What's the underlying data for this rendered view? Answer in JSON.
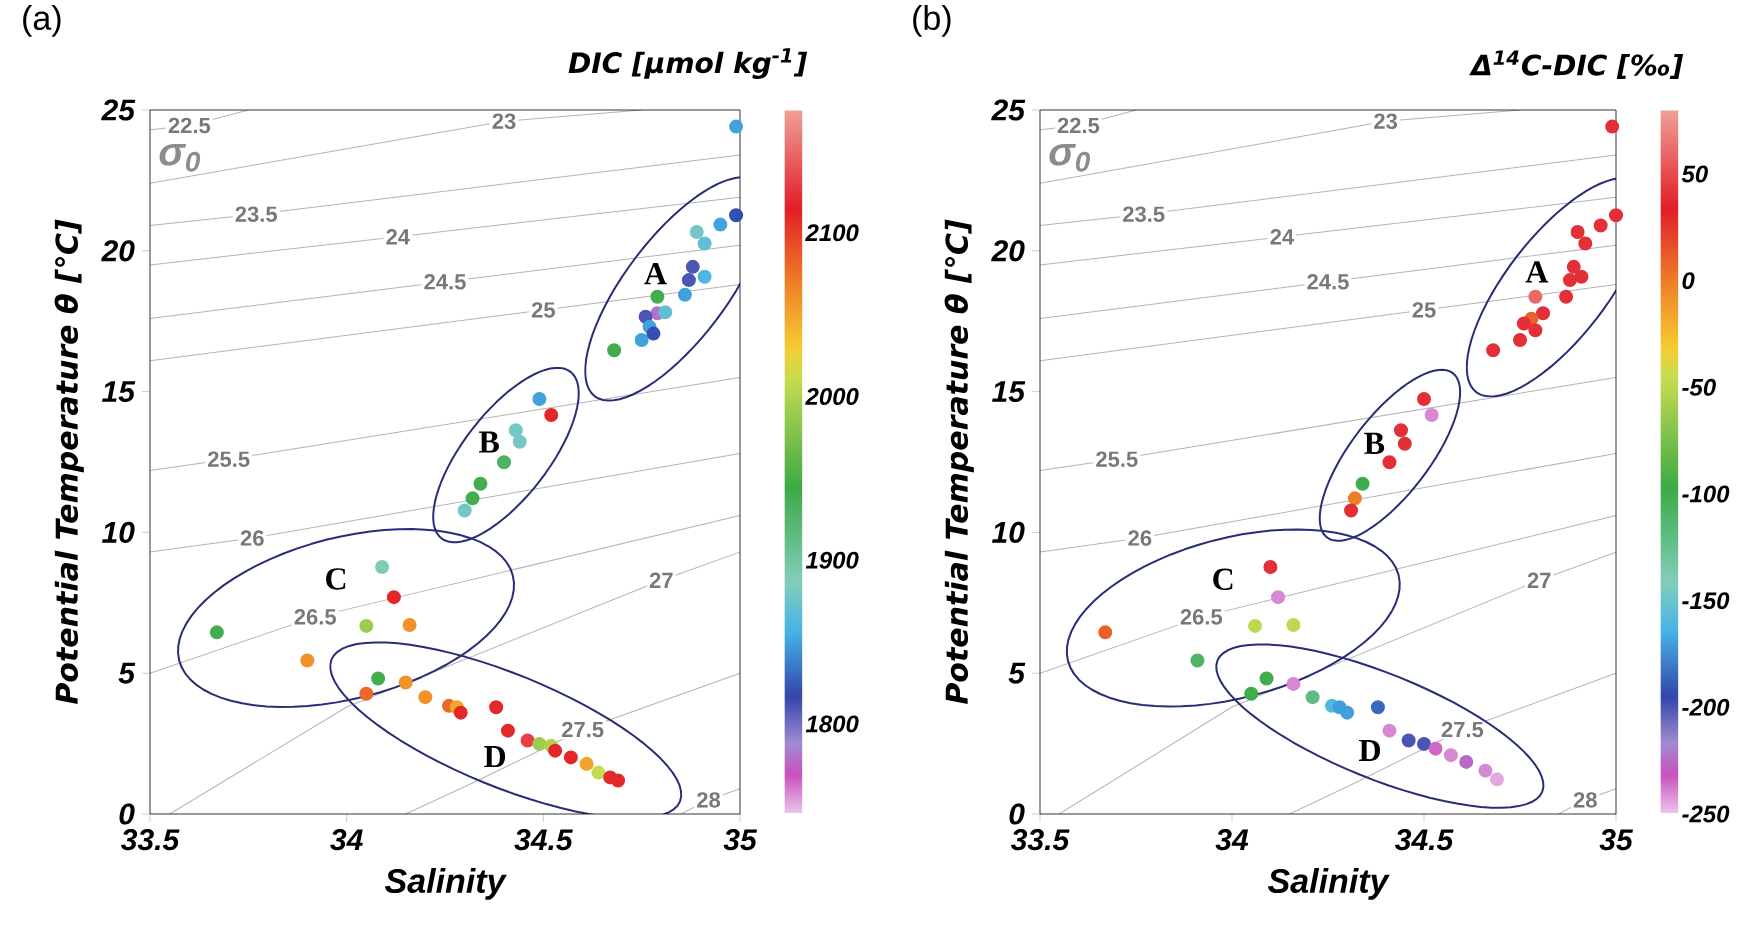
{
  "chart_data": [
    {
      "type": "scatter",
      "title": "(a)",
      "xlabel": "Salinity",
      "ylabel": "Potential Temperature θ [℃]",
      "clabel": "DIC [μmol kg$^{-1}$]",
      "xlim": [
        33.5,
        35
      ],
      "ylim": [
        0,
        25
      ],
      "xticks": [
        33.5,
        34,
        34.5,
        35
      ],
      "yticks": [
        0,
        5,
        10,
        15,
        20,
        25
      ],
      "clim": [
        1745,
        2175
      ],
      "cticks": [
        1800,
        1900,
        2000,
        2100
      ],
      "marker": "circle",
      "annotations": [
        "σ$_{0}$"
      ],
      "series": [
        {
          "type": "line",
          "marker": "none",
          "name": "22.5",
          "color": "#b4b4b4",
          "x": [
            33.5,
            33.6,
            33.75
          ],
          "values": [
            24.3,
            24.45,
            25.0
          ]
        },
        {
          "type": "line",
          "marker": "none",
          "name": "23",
          "color": "#b4b4b4",
          "x": [
            33.5,
            34.4,
            34.75
          ],
          "values": [
            22.4,
            24.6,
            25.0
          ]
        },
        {
          "type": "line",
          "marker": "none",
          "name": "23.5",
          "color": "#b4b4b4",
          "x": [
            33.5,
            33.77,
            35.0
          ],
          "values": [
            20.9,
            21.3,
            23.4
          ]
        },
        {
          "type": "line",
          "marker": "none",
          "name": "24",
          "color": "#b4b4b4",
          "x": [
            33.5,
            34.13,
            35.0
          ],
          "values": [
            19.5,
            20.5,
            21.9
          ]
        },
        {
          "type": "line",
          "marker": "none",
          "name": "24.5",
          "color": "#b4b4b4",
          "x": [
            33.5,
            34.25,
            35.0
          ],
          "values": [
            17.6,
            18.9,
            20.2
          ]
        },
        {
          "type": "line",
          "marker": "none",
          "name": "25",
          "color": "#b4b4b4",
          "x": [
            33.5,
            34.5,
            35.0
          ],
          "values": [
            16.1,
            17.9,
            18.8
          ]
        },
        {
          "type": "line",
          "marker": "none",
          "name": "25.5",
          "color": "#b4b4b4",
          "x": [
            33.5,
            33.7,
            35.0
          ],
          "values": [
            12.2,
            12.6,
            15.5
          ]
        },
        {
          "type": "line",
          "marker": "none",
          "name": "26",
          "color": "#b4b4b4",
          "x": [
            33.5,
            33.76,
            35.0
          ],
          "values": [
            9.3,
            9.8,
            12.8
          ]
        },
        {
          "type": "line",
          "marker": "none",
          "name": "26.5",
          "color": "#b4b4b4",
          "x": [
            33.5,
            33.92,
            35.0
          ],
          "values": [
            5.0,
            7.0,
            10.6
          ]
        },
        {
          "type": "line",
          "marker": "none",
          "name": "27",
          "color": "#b4b4b4",
          "x": [
            33.55,
            34.0,
            34.8,
            35.0
          ],
          "values": [
            0,
            3.8,
            8.3,
            9.3
          ]
        },
        {
          "type": "line",
          "marker": "none",
          "name": "27.5",
          "color": "#b4b4b4",
          "x": [
            34.15,
            34.32,
            34.6,
            35.0
          ],
          "values": [
            0,
            1.1,
            3.0,
            5.0
          ]
        },
        {
          "type": "line",
          "marker": "none",
          "name": "28",
          "color": "#b4b4b4",
          "x": [
            34.85,
            34.92,
            35.0
          ],
          "values": [
            0,
            0.5,
            0.9
          ]
        },
        {
          "x": [
            34.99
          ],
          "values": [
            24.41
          ],
          "cvalues": [
            1850
          ],
          "colors": [
            "#43a1dc"
          ]
        },
        {
          "name": "A",
          "x": [
            34.99,
            34.95,
            34.89,
            34.91,
            34.88,
            34.87,
            34.91,
            34.79,
            34.86,
            34.79,
            34.76,
            34.81,
            34.77,
            34.75,
            34.78,
            34.68
          ],
          "values": [
            21.26,
            20.93,
            20.67,
            20.26,
            19.43,
            18.96,
            19.08,
            18.37,
            18.44,
            17.78,
            17.66,
            17.82,
            17.3,
            16.83,
            17.06,
            16.47
          ],
          "cvalues": [
            1820,
            1850,
            1880,
            1870,
            1810,
            1810,
            1860,
            1940,
            1850,
            1780,
            1810,
            1870,
            1850,
            1850,
            1820,
            1940
          ],
          "colors": [
            "#344faf",
            "#43a1dc",
            "#74c7c3",
            "#60bfd2",
            "#4c57b3",
            "#4c57b3",
            "#4cb7e1",
            "#41ad4e",
            "#43a1dc",
            "#b173ca",
            "#4c57b3",
            "#60bfd2",
            "#43a1dc",
            "#43a1dc",
            "#344faf",
            "#41ad4e"
          ]
        },
        {
          "name": "B",
          "x": [
            34.49,
            34.52,
            34.43,
            34.44,
            34.4,
            34.34,
            34.32,
            34.3
          ],
          "values": [
            14.74,
            14.17,
            13.63,
            13.22,
            12.49,
            11.73,
            11.21,
            10.78
          ],
          "cvalues": [
            1850,
            2110,
            1880,
            1880,
            1930,
            1940,
            1940,
            1880
          ],
          "colors": [
            "#43a1dc",
            "#e22828",
            "#74c7c3",
            "#74c7c3",
            "#4db362",
            "#41ad4e",
            "#41ad4e",
            "#74c7c3"
          ]
        },
        {
          "name": "C",
          "x": [
            34.09,
            34.12,
            34.05,
            34.16,
            33.67,
            33.9
          ],
          "values": [
            8.77,
            7.7,
            6.68,
            6.71,
            6.45,
            5.45
          ],
          "cvalues": [
            1890,
            2110,
            1990,
            2060,
            1940,
            2060
          ],
          "colors": [
            "#7ecbb3",
            "#e22828",
            "#9bcc4d",
            "#f09229",
            "#41ad4e",
            "#f09229"
          ]
        },
        {
          "name": "D",
          "x": [
            34.08,
            34.05,
            34.15,
            34.2,
            34.26,
            34.28,
            34.29,
            34.38,
            34.41,
            34.46,
            34.49,
            34.52,
            34.53,
            34.57,
            34.61,
            34.64,
            34.67,
            34.69
          ],
          "values": [
            4.81,
            4.27,
            4.67,
            4.15,
            3.84,
            3.79,
            3.6,
            3.79,
            2.96,
            2.61,
            2.49,
            2.42,
            2.25,
            2.01,
            1.78,
            1.47,
            1.3,
            1.19
          ],
          "cvalues": [
            1940,
            2080,
            2060,
            2060,
            2080,
            2050,
            2110,
            2110,
            2110,
            2130,
            1990,
            2000,
            2110,
            2110,
            2050,
            2010,
            2120,
            2110
          ],
          "colors": [
            "#41ad4e",
            "#eb6828",
            "#f09229",
            "#f09229",
            "#eb6828",
            "#f2a52c",
            "#e22828",
            "#e22828",
            "#e22828",
            "#e53f44",
            "#9bcc4d",
            "#b0d34e",
            "#e22828",
            "#e22828",
            "#f2a52c",
            "#c5db50",
            "#e22932",
            "#e22828"
          ]
        }
      ]
    },
    {
      "type": "scatter",
      "title": "(b)",
      "xlabel": "Salinity",
      "ylabel": "Potential Temperature θ [℃]",
      "clabel": "Δ$^{14}$C-DIC [‰]",
      "xlim": [
        33.5,
        35
      ],
      "ylim": [
        0,
        25
      ],
      "xticks": [
        33.5,
        34,
        34.5,
        35
      ],
      "yticks": [
        0,
        5,
        10,
        15,
        20,
        25
      ],
      "clim": [
        -250,
        80
      ],
      "cticks": [
        -250,
        -200,
        -150,
        -100,
        -50,
        0,
        50
      ],
      "marker": "circle",
      "annotations": [
        "σ$_{0}$"
      ],
      "series": [
        {
          "type": "line",
          "marker": "none",
          "name": "22.5",
          "color": "#b4b4b4",
          "x": [
            33.5,
            33.6,
            33.75
          ],
          "values": [
            24.3,
            24.45,
            25.0
          ]
        },
        {
          "type": "line",
          "marker": "none",
          "name": "23",
          "color": "#b4b4b4",
          "x": [
            33.5,
            34.4,
            34.75
          ],
          "values": [
            22.4,
            24.6,
            25.0
          ]
        },
        {
          "type": "line",
          "marker": "none",
          "name": "23.5",
          "color": "#b4b4b4",
          "x": [
            33.5,
            33.77,
            35.0
          ],
          "values": [
            20.9,
            21.3,
            23.4
          ]
        },
        {
          "type": "line",
          "marker": "none",
          "name": "24",
          "color": "#b4b4b4",
          "x": [
            33.5,
            34.13,
            35.0
          ],
          "values": [
            19.5,
            20.5,
            21.9
          ]
        },
        {
          "type": "line",
          "marker": "none",
          "name": "24.5",
          "color": "#b4b4b4",
          "x": [
            33.5,
            34.25,
            35.0
          ],
          "values": [
            17.6,
            18.9,
            20.2
          ]
        },
        {
          "type": "line",
          "marker": "none",
          "name": "25",
          "color": "#b4b4b4",
          "x": [
            33.5,
            34.5,
            35.0
          ],
          "values": [
            16.1,
            17.9,
            18.8
          ]
        },
        {
          "type": "line",
          "marker": "none",
          "name": "25.5",
          "color": "#b4b4b4",
          "x": [
            33.5,
            33.7,
            35.0
          ],
          "values": [
            12.2,
            12.6,
            15.5
          ]
        },
        {
          "type": "line",
          "marker": "none",
          "name": "26",
          "color": "#b4b4b4",
          "x": [
            33.5,
            33.76,
            35.0
          ],
          "values": [
            9.3,
            9.8,
            12.8
          ]
        },
        {
          "type": "line",
          "marker": "none",
          "name": "26.5",
          "color": "#b4b4b4",
          "x": [
            33.5,
            33.92,
            35.0
          ],
          "values": [
            5.0,
            7.0,
            10.6
          ]
        },
        {
          "type": "line",
          "marker": "none",
          "name": "27",
          "color": "#b4b4b4",
          "x": [
            33.55,
            34.0,
            34.8,
            35.0
          ],
          "values": [
            0,
            3.8,
            8.3,
            9.3
          ]
        },
        {
          "type": "line",
          "marker": "none",
          "name": "27.5",
          "color": "#b4b4b4",
          "x": [
            34.15,
            34.32,
            34.6,
            35.0
          ],
          "values": [
            0,
            1.1,
            3.0,
            5.0
          ]
        },
        {
          "type": "line",
          "marker": "none",
          "name": "28",
          "color": "#b4b4b4",
          "x": [
            34.85,
            34.92,
            35.0
          ],
          "values": [
            0,
            0.5,
            0.9
          ]
        },
        {
          "x": [
            34.99
          ],
          "values": [
            24.41
          ],
          "cvalues": [
            40
          ],
          "colors": [
            "#e32f37"
          ]
        },
        {
          "name": "A",
          "x": [
            35.0,
            34.96,
            34.9,
            34.92,
            34.89,
            34.91,
            34.88,
            34.87,
            34.79,
            34.81,
            34.78,
            34.76,
            34.79,
            34.75,
            34.68
          ],
          "values": [
            21.26,
            20.9,
            20.67,
            20.26,
            19.43,
            19.08,
            18.96,
            18.37,
            18.37,
            17.78,
            17.59,
            17.42,
            17.18,
            16.83,
            16.47
          ],
          "cvalues": [
            40,
            40,
            40,
            40,
            40,
            40,
            40,
            40,
            60,
            40,
            10,
            40,
            40,
            40,
            40
          ],
          "colors": [
            "#e32f37",
            "#e32f37",
            "#e32f37",
            "#e32f37",
            "#e32f37",
            "#e32f37",
            "#e32f37",
            "#e32f37",
            "#ea6866",
            "#e32f37",
            "#ea6028",
            "#e32f37",
            "#e32f37",
            "#e32f37",
            "#e32f37"
          ]
        },
        {
          "name": "B",
          "x": [
            34.5,
            34.52,
            34.44,
            34.45,
            34.41,
            34.34,
            34.32,
            34.31
          ],
          "values": [
            14.74,
            14.17,
            13.63,
            13.15,
            12.49,
            11.73,
            11.21,
            10.78
          ],
          "cvalues": [
            40,
            -240,
            40,
            40,
            40,
            -100,
            0,
            40
          ],
          "colors": [
            "#e32f37",
            "#d887d3",
            "#e32f37",
            "#e32f37",
            "#e32f37",
            "#40ac4d",
            "#ee7c28",
            "#e32f37"
          ]
        },
        {
          "name": "C",
          "x": [
            34.1,
            34.12,
            34.06,
            34.16,
            33.67,
            33.91
          ],
          "values": [
            8.77,
            7.7,
            6.68,
            6.71,
            6.45,
            5.45
          ],
          "cvalues": [
            40,
            -240,
            -50,
            -50,
            10,
            -110
          ],
          "colors": [
            "#e32f37",
            "#d887d3",
            "#bcd84f",
            "#bcd84f",
            "#ea6028",
            "#50b468"
          ]
        },
        {
          "name": "D",
          "x": [
            34.09,
            34.05,
            34.16,
            34.21,
            34.26,
            34.28,
            34.3,
            34.38,
            34.41,
            34.46,
            34.5,
            34.53,
            34.57,
            34.61,
            34.66,
            34.69
          ],
          "values": [
            4.81,
            4.27,
            4.62,
            4.15,
            3.84,
            3.79,
            3.6,
            3.79,
            2.96,
            2.61,
            2.49,
            2.32,
            2.09,
            1.85,
            1.54,
            1.23
          ],
          "cvalues": [
            -100,
            -100,
            -240,
            -120,
            -160,
            -170,
            -170,
            -185,
            -240,
            -200,
            -200,
            -235,
            -240,
            -225,
            -240,
            -245
          ],
          "colors": [
            "#40ac4d",
            "#40ac4d",
            "#d887d3",
            "#60bc82",
            "#51b9de",
            "#429fdb",
            "#429fdb",
            "#3869bd",
            "#d887d3",
            "#4b56b3",
            "#4b56b3",
            "#cf67c6",
            "#d887d3",
            "#b66bc7",
            "#d887d3",
            "#e2a8df"
          ]
        }
      ]
    }
  ]
}
